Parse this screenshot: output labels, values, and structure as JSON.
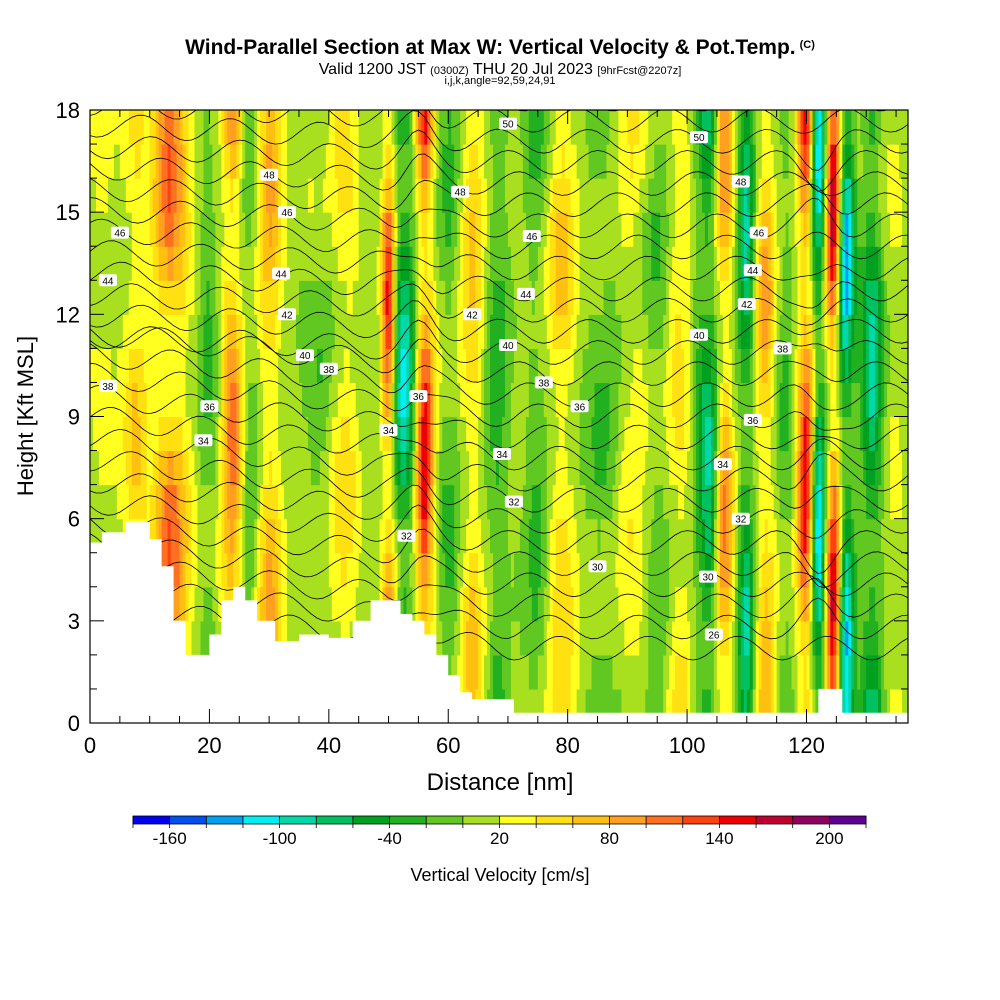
{
  "title": {
    "main": "Wind-Parallel Section at Max W: Vertical Velocity & Pot.Temp.",
    "main_mark": "(C)",
    "valid_prefix": "Valid 1200 JST",
    "valid_utc": "(0300Z)",
    "valid_date": "THU 20 Jul 2023",
    "forecast": "[9hrFcst@2207z]",
    "section_params": "i,j,k,angle=92,59,24,91"
  },
  "chart_data": {
    "type": "heatmap",
    "xlabel": "Distance [nm]",
    "ylabel": "Height [Kft MSL]",
    "xlim": [
      0,
      137
    ],
    "ylim": [
      0,
      18
    ],
    "x_ticks": [
      "0",
      "20",
      "40",
      "60",
      "80",
      "100",
      "120"
    ],
    "y_ticks": [
      "0",
      "3",
      "6",
      "9",
      "12",
      "15",
      "18"
    ],
    "grid": false,
    "colorbar": {
      "label": "Vertical Velocity [cm/s]",
      "tick_labels": [
        "-160",
        "-100",
        "-40",
        "20",
        "80",
        "140",
        "200"
      ],
      "levels": [
        -180,
        -160,
        -140,
        -120,
        -100,
        -80,
        -60,
        -40,
        -20,
        0,
        20,
        40,
        60,
        80,
        100,
        120,
        140,
        160,
        180,
        200,
        220
      ],
      "colors": [
        "#0000ee",
        "#0050f0",
        "#00a0f0",
        "#00eef0",
        "#00d8a8",
        "#00c060",
        "#00a020",
        "#20b020",
        "#60c820",
        "#a8e020",
        "#ffff20",
        "#ffe010",
        "#ffc010",
        "#ffa020",
        "#ff7020",
        "#ff4010",
        "#ee0000",
        "#c00030",
        "#900060",
        "#600090"
      ]
    },
    "isentrope_labels": [
      {
        "value": "26",
        "x": 104.5,
        "y": 2.6
      },
      {
        "value": "30",
        "x": 85,
        "y": 4.6
      },
      {
        "value": "30",
        "x": 103.5,
        "y": 4.3
      },
      {
        "value": "32",
        "x": 53,
        "y": 5.5
      },
      {
        "value": "32",
        "x": 71,
        "y": 6.5
      },
      {
        "value": "32",
        "x": 109,
        "y": 6.0
      },
      {
        "value": "34",
        "x": 19,
        "y": 8.3
      },
      {
        "value": "34",
        "x": 50,
        "y": 8.6
      },
      {
        "value": "34",
        "x": 69,
        "y": 7.9
      },
      {
        "value": "34",
        "x": 106,
        "y": 7.6
      },
      {
        "value": "36",
        "x": 20,
        "y": 9.3
      },
      {
        "value": "36",
        "x": 55,
        "y": 9.6
      },
      {
        "value": "36",
        "x": 82,
        "y": 9.3
      },
      {
        "value": "36",
        "x": 111,
        "y": 8.9
      },
      {
        "value": "38",
        "x": 3,
        "y": 9.9
      },
      {
        "value": "38",
        "x": 40,
        "y": 10.4
      },
      {
        "value": "38",
        "x": 76,
        "y": 10.0
      },
      {
        "value": "38",
        "x": 116,
        "y": 11.0
      },
      {
        "value": "40",
        "x": 36,
        "y": 10.8
      },
      {
        "value": "40",
        "x": 70,
        "y": 11.1
      },
      {
        "value": "40",
        "x": 102,
        "y": 11.4
      },
      {
        "value": "42",
        "x": 33,
        "y": 12.0
      },
      {
        "value": "42",
        "x": 64,
        "y": 12.0
      },
      {
        "value": "42",
        "x": 110,
        "y": 12.3
      },
      {
        "value": "44",
        "x": 3,
        "y": 13.0
      },
      {
        "value": "44",
        "x": 32,
        "y": 13.2
      },
      {
        "value": "44",
        "x": 73,
        "y": 12.6
      },
      {
        "value": "44",
        "x": 111,
        "y": 13.3
      },
      {
        "value": "46",
        "x": 5,
        "y": 14.4
      },
      {
        "value": "46",
        "x": 33,
        "y": 15.0
      },
      {
        "value": "46",
        "x": 74,
        "y": 14.3
      },
      {
        "value": "46",
        "x": 112,
        "y": 14.4
      },
      {
        "value": "48",
        "x": 30,
        "y": 16.1
      },
      {
        "value": "48",
        "x": 62,
        "y": 15.6
      },
      {
        "value": "48",
        "x": 109,
        "y": 15.9
      },
      {
        "value": "50",
        "x": 70,
        "y": 17.6
      },
      {
        "value": "50",
        "x": 102,
        "y": 17.2
      }
    ],
    "velocity_features": [
      {
        "x": 8,
        "w": 3,
        "v": 60
      },
      {
        "x": 13,
        "w": 3,
        "v": 120
      },
      {
        "x": 10,
        "w": 2,
        "v": -40
      },
      {
        "x": 24,
        "w": 1.8,
        "v": 110
      },
      {
        "x": 20,
        "w": 2,
        "v": -40
      },
      {
        "x": 30,
        "w": 2.5,
        "v": 80
      },
      {
        "x": 27,
        "w": 2,
        "v": -40
      },
      {
        "x": 38,
        "w": 3,
        "v": -40
      },
      {
        "x": 42,
        "w": 3,
        "v": 40
      },
      {
        "x": 50,
        "w": 1.2,
        "v": 150
      },
      {
        "x": 52.5,
        "w": 2,
        "v": -120
      },
      {
        "x": 56,
        "w": 1.5,
        "v": 160
      },
      {
        "x": 60,
        "w": 2.5,
        "v": -40
      },
      {
        "x": 64,
        "w": 2.5,
        "v": 60
      },
      {
        "x": 68,
        "w": 2.5,
        "v": -40
      },
      {
        "x": 75,
        "w": 3,
        "v": -40
      },
      {
        "x": 79,
        "w": 3,
        "v": 50
      },
      {
        "x": 86,
        "w": 3,
        "v": -40
      },
      {
        "x": 90,
        "w": 3,
        "v": 40
      },
      {
        "x": 95,
        "w": 3,
        "v": -40
      },
      {
        "x": 98,
        "w": 2.5,
        "v": 40
      },
      {
        "x": 102,
        "w": 1.5,
        "v": -40
      },
      {
        "x": 104,
        "w": 1.5,
        "v": -100
      },
      {
        "x": 106,
        "w": 1.8,
        "v": 100
      },
      {
        "x": 110,
        "w": 1.5,
        "v": -100
      },
      {
        "x": 113,
        "w": 2,
        "v": 70
      },
      {
        "x": 116,
        "w": 2,
        "v": -40
      },
      {
        "x": 120,
        "w": 1.5,
        "v": 170
      },
      {
        "x": 122,
        "w": 1.5,
        "v": -160
      },
      {
        "x": 124.5,
        "w": 1.5,
        "v": 200
      },
      {
        "x": 126.5,
        "w": 1.5,
        "v": -160
      },
      {
        "x": 131,
        "w": 2,
        "v": -100
      }
    ],
    "terrain": [
      {
        "x": 0,
        "h": 5.3
      },
      {
        "x": 2,
        "h": 5.6
      },
      {
        "x": 6,
        "h": 5.9
      },
      {
        "x": 10,
        "h": 5.4
      },
      {
        "x": 12,
        "h": 4.6
      },
      {
        "x": 14,
        "h": 3.0
      },
      {
        "x": 16,
        "h": 2.0
      },
      {
        "x": 18,
        "h": 2.0
      },
      {
        "x": 20,
        "h": 2.6
      },
      {
        "x": 22,
        "h": 3.6
      },
      {
        "x": 24,
        "h": 4.0
      },
      {
        "x": 26,
        "h": 3.6
      },
      {
        "x": 28,
        "h": 3.0
      },
      {
        "x": 31,
        "h": 2.4
      },
      {
        "x": 35,
        "h": 2.6
      },
      {
        "x": 40,
        "h": 2.5
      },
      {
        "x": 44,
        "h": 3.0
      },
      {
        "x": 47,
        "h": 3.6
      },
      {
        "x": 50,
        "h": 3.6
      },
      {
        "x": 52,
        "h": 3.2
      },
      {
        "x": 54,
        "h": 3.0
      },
      {
        "x": 56,
        "h": 2.6
      },
      {
        "x": 58,
        "h": 2.0
      },
      {
        "x": 60,
        "h": 1.4
      },
      {
        "x": 62,
        "h": 0.9
      },
      {
        "x": 64,
        "h": 0.7
      },
      {
        "x": 70,
        "h": 0.7
      },
      {
        "x": 71,
        "h": 0.3
      },
      {
        "x": 118,
        "h": 0.3
      },
      {
        "x": 122,
        "h": 1.0
      },
      {
        "x": 125,
        "h": 1.0
      },
      {
        "x": 126,
        "h": 0.3
      },
      {
        "x": 137,
        "h": 0.3
      }
    ]
  }
}
